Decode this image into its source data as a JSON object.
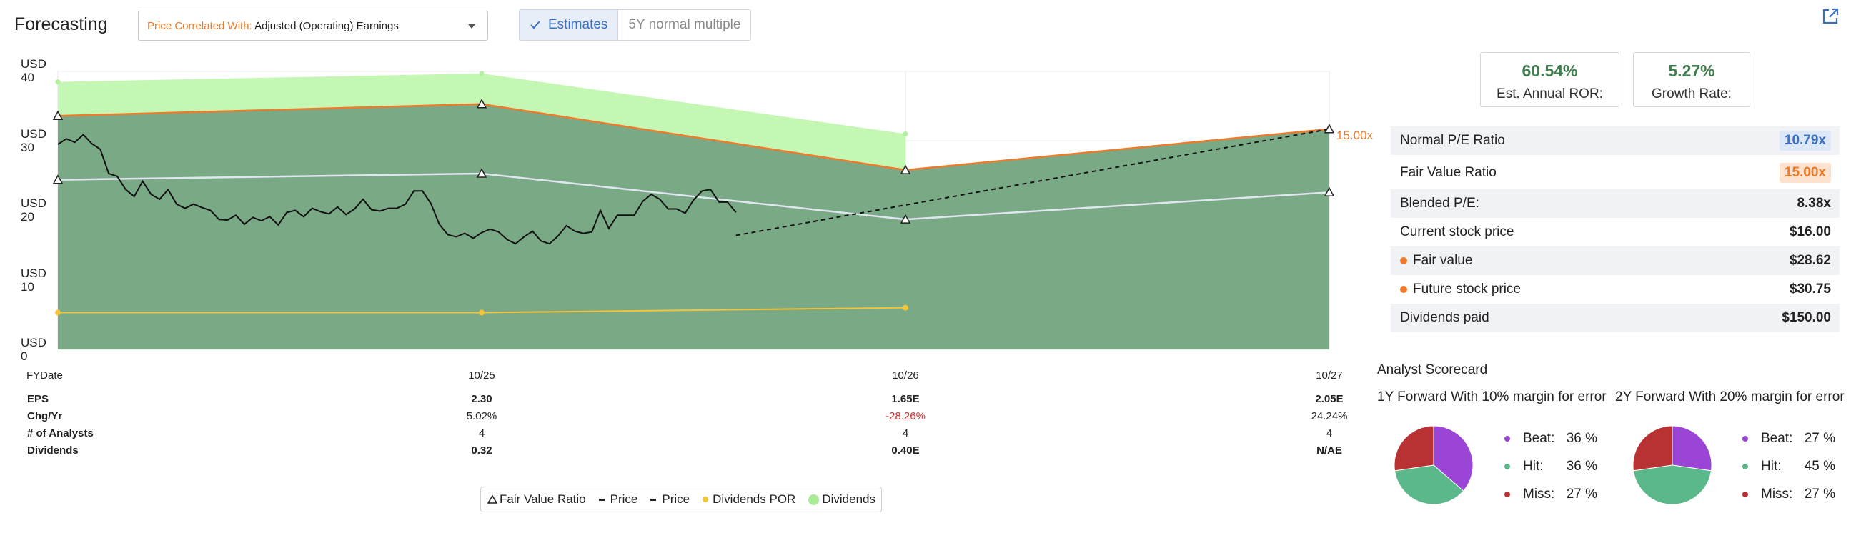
{
  "header": {
    "title": "Forecasting",
    "correlation_label": "Price Correlated With:",
    "correlation_value": "Adjusted (Operating) Earnings",
    "estimates_label": "Estimates",
    "normal_multiple_label": "5Y normal multiple"
  },
  "chart_data": {
    "type": "area",
    "y_axis": {
      "unit": "USD",
      "ticks": [
        40,
        30,
        20,
        10,
        0
      ],
      "ylim": [
        0,
        43
      ]
    },
    "x_labels": [
      "10/25",
      "10/26",
      "10/27"
    ],
    "x_header": "FYDate",
    "end_label": "15.00x",
    "series": [
      {
        "name": "Dividends",
        "color": "#c3f7b3",
        "x": [
          0,
          1,
          2
        ],
        "y": [
          38.5,
          39.7,
          31.0
        ]
      },
      {
        "name": "Fair Value Ratio",
        "color": "#ee7a2a",
        "x": [
          0,
          1,
          2,
          3
        ],
        "y": [
          33.6,
          35.3,
          25.8,
          31.7
        ]
      },
      {
        "name": "Price",
        "color": "#dfe6f0",
        "x": [
          0,
          1,
          2,
          3
        ],
        "y": [
          24.4,
          25.3,
          18.7,
          22.6
        ]
      },
      {
        "name": "Dividends POR",
        "color": "#f4c43a",
        "x": [
          0,
          1,
          2
        ],
        "y": [
          5.3,
          5.3,
          6.0
        ]
      },
      {
        "name": "Price",
        "color": "#000000",
        "x": [
          0.0,
          0.02,
          0.04,
          0.06,
          0.08,
          0.1,
          0.12,
          0.14,
          0.16,
          0.18,
          0.2,
          0.22,
          0.24,
          0.26,
          0.28,
          0.3,
          0.32,
          0.34,
          0.36,
          0.38,
          0.4,
          0.42,
          0.44,
          0.46,
          0.48,
          0.5,
          0.52,
          0.54,
          0.56,
          0.58,
          0.6,
          0.62,
          0.64,
          0.66,
          0.68,
          0.7,
          0.72,
          0.74,
          0.76,
          0.78,
          0.8,
          0.82,
          0.84,
          0.86,
          0.88,
          0.9,
          0.92,
          0.94,
          0.96,
          0.98,
          1.0,
          1.02,
          1.04,
          1.06,
          1.08,
          1.1,
          1.12,
          1.14,
          1.16,
          1.18,
          1.2,
          1.22,
          1.24,
          1.26,
          1.28,
          1.3,
          1.32,
          1.34,
          1.36,
          1.38,
          1.4,
          1.42,
          1.44,
          1.46,
          1.48,
          1.5,
          1.52,
          1.54,
          1.56,
          1.58,
          1.6
        ],
        "y": [
          29.5,
          30.3,
          29.8,
          30.9,
          29.6,
          28.8,
          25.3,
          24.9,
          23.0,
          22.0,
          24.2,
          22.3,
          21.6,
          23.0,
          20.9,
          20.3,
          20.9,
          20.4,
          20.0,
          18.7,
          18.6,
          19.3,
          18.0,
          19.0,
          18.5,
          19.1,
          17.9,
          19.7,
          20.0,
          19.1,
          20.3,
          19.8,
          19.5,
          20.5,
          19.4,
          20.2,
          21.6,
          20.1,
          19.9,
          20.3,
          20.3,
          20.9,
          22.8,
          22.8,
          21.0,
          18.0,
          16.5,
          16.2,
          16.7,
          16.0,
          16.8,
          17.3,
          16.9,
          15.8,
          15.2,
          16.2,
          17.0,
          15.6,
          15.2,
          16.3,
          17.8,
          17.0,
          16.7,
          16.9,
          20.0,
          17.4,
          19.3,
          19.3,
          19.3,
          21.3,
          22.3,
          21.6,
          20.2,
          20.2,
          19.6,
          21.5,
          22.8,
          23.0,
          21.2,
          21.2,
          19.7
        ]
      },
      {
        "name": "Price",
        "color": "#000000",
        "x": [
          1.6,
          3
        ],
        "y": [
          16.4,
          31.7
        ]
      }
    ],
    "legend": [
      "Fair Value Ratio",
      "Price",
      "Price",
      "Dividends POR",
      "Dividends"
    ]
  },
  "table": {
    "rows": [
      {
        "label": "EPS",
        "values": [
          "2.30",
          "1.65E",
          "2.05E"
        ]
      },
      {
        "label": "Chg/Yr",
        "values": [
          "5.02%",
          "-28.26%",
          "24.24%"
        ]
      },
      {
        "label": "# of Analysts",
        "values": [
          "4",
          "4",
          "4"
        ]
      },
      {
        "label": "Dividends",
        "values": [
          "0.32",
          "0.40E",
          "N/AE"
        ]
      }
    ]
  },
  "stats": [
    {
      "value": "60.54%",
      "label": "Est. Annual ROR:"
    },
    {
      "value": "5.27%",
      "label": "Growth Rate:"
    }
  ],
  "metrics": [
    {
      "label": "Normal P/E Ratio",
      "value": "10.79x"
    },
    {
      "label": "Fair Value Ratio",
      "value": "15.00x"
    },
    {
      "label": "Blended P/E:",
      "value": "8.38x"
    },
    {
      "label": "Current stock price",
      "value": "$16.00"
    },
    {
      "label": "Fair value",
      "value": "$28.62"
    },
    {
      "label": "Future stock price",
      "value": "$30.75"
    },
    {
      "label": "Dividends paid",
      "value": "$150.00"
    }
  ],
  "scorecard": {
    "title": "Analyst Scorecard",
    "charts": [
      {
        "subtitle": "1Y Forward With 10% margin for error",
        "items": [
          {
            "label": "Beat:",
            "pct": "36 %",
            "value": 36,
            "color": "#9b45d6"
          },
          {
            "label": "Hit:",
            "pct": "36 %",
            "value": 36,
            "color": "#5bb88a"
          },
          {
            "label": "Miss:",
            "pct": "27 %",
            "value": 27,
            "color": "#b83234"
          }
        ]
      },
      {
        "subtitle": "2Y Forward With 20% margin for error",
        "items": [
          {
            "label": "Beat:",
            "pct": "27 %",
            "value": 27,
            "color": "#9b45d6"
          },
          {
            "label": "Hit:",
            "pct": "45 %",
            "value": 45,
            "color": "#5bb88a"
          },
          {
            "label": "Miss:",
            "pct": "27 %",
            "value": 27,
            "color": "#b83234"
          }
        ]
      }
    ]
  }
}
